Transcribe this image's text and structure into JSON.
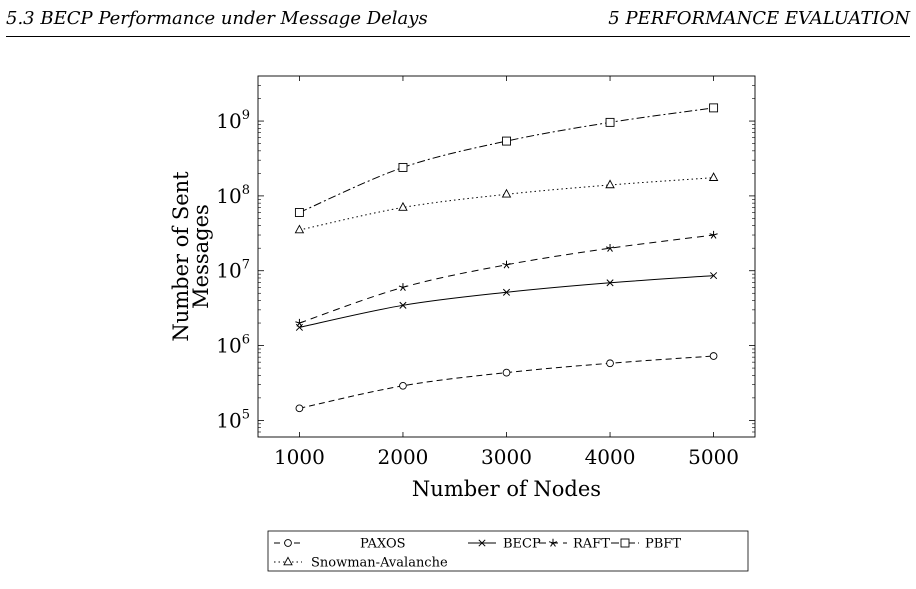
{
  "header": {
    "left": "5.3  BECP Performance under Message Delays",
    "right": "5  PERFORMANCE EVALUATION"
  },
  "chart_data": {
    "type": "line",
    "xlabel": "Number of Nodes",
    "ylabel_lines": [
      "Number of Sent",
      "Messages"
    ],
    "y_scale": "log",
    "xlim": [
      600,
      5400
    ],
    "ylim": [
      60000,
      4000000000
    ],
    "x_ticks": [
      1000,
      2000,
      3000,
      4000,
      5000
    ],
    "y_ticks": [
      {
        "value": 100000,
        "label": "10",
        "exp": "5"
      },
      {
        "value": 1000000,
        "label": "10",
        "exp": "6"
      },
      {
        "value": 10000000,
        "label": "10",
        "exp": "7"
      },
      {
        "value": 100000000,
        "label": "10",
        "exp": "8"
      },
      {
        "value": 1000000000,
        "label": "10",
        "exp": "9"
      }
    ],
    "grid": false,
    "legend_position": "bottom",
    "x": [
      1000,
      2000,
      3000,
      4000,
      5000
    ],
    "series": [
      {
        "name": "PAXOS",
        "values": [
          145000,
          290000,
          435000,
          580000,
          725000
        ],
        "marker": "circle",
        "dash": "6,4"
      },
      {
        "name": "BECP",
        "values": [
          1750000,
          3450000,
          5150000,
          6900000,
          8600000
        ],
        "marker": "x",
        "dash": ""
      },
      {
        "name": "RAFT",
        "values": [
          2000000,
          6000000,
          12000000,
          20000000,
          30000000
        ],
        "marker": "star",
        "dash": "7,5"
      },
      {
        "name": "PBFT",
        "values": [
          60000000,
          240000000,
          540000000,
          960000000,
          1500000000
        ],
        "marker": "square",
        "dash": "8,3,2,3"
      },
      {
        "name": "Snowman-Avalanche",
        "values": [
          35000000,
          70000000,
          105000000,
          140000000,
          175000000
        ],
        "marker": "triangle",
        "dash": "1.5,3"
      }
    ]
  }
}
